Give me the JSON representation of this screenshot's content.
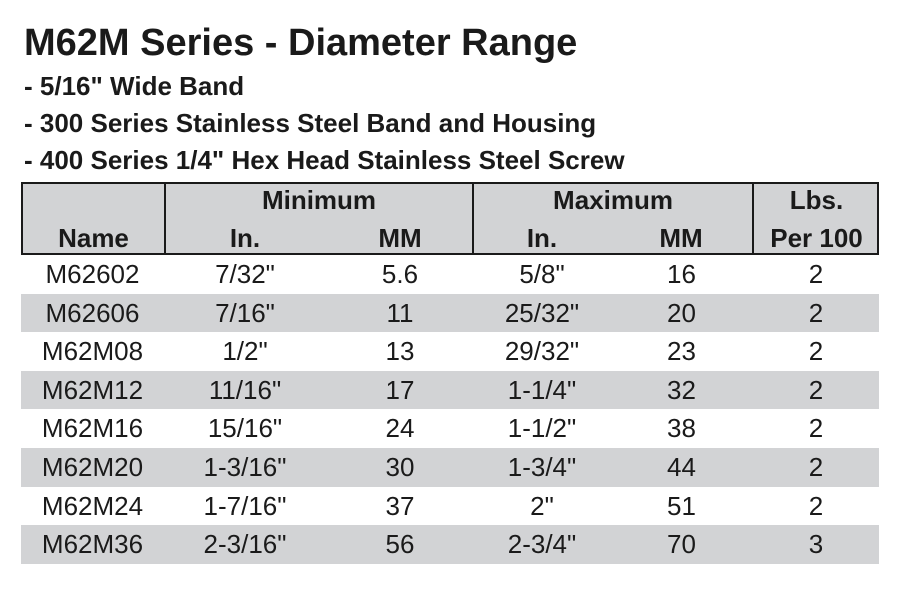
{
  "title": "M62M Series - Diameter Range",
  "bullets": [
    "- 5/16\" Wide Band",
    "- 300 Series Stainless Steel Band and Housing",
    "- 400 Series 1/4\" Hex Head Stainless Steel Screw"
  ],
  "table": {
    "headers": {
      "name": "Name",
      "minimum": "Minimum",
      "maximum": "Maximum",
      "in": "In.",
      "mm": "MM",
      "lbs_line1": "Lbs.",
      "lbs_line2": "Per 100"
    },
    "rows": [
      [
        "M62602",
        "7/32\"",
        "5.6",
        "5/8\"",
        "16",
        "2"
      ],
      [
        "M62606",
        "7/16\"",
        "11",
        "25/32\"",
        "20",
        "2"
      ],
      [
        "M62M08",
        "1/2\"",
        "13",
        "29/32\"",
        "23",
        "2"
      ],
      [
        "M62M12",
        "11/16\"",
        "17",
        "1-1/4\"",
        "32",
        "2"
      ],
      [
        "M62M16",
        "15/16\"",
        "24",
        "1-1/2\"",
        "38",
        "2"
      ],
      [
        "M62M20",
        "1-3/16\"",
        "30",
        "1-3/4\"",
        "44",
        "2"
      ],
      [
        "M62M24",
        "1-7/16\"",
        "37",
        "2\"",
        "51",
        "2"
      ],
      [
        "M62M36",
        "2-3/16\"",
        "56",
        "2-3/4\"",
        "70",
        "3"
      ]
    ]
  },
  "colors": {
    "row_shade": "#d2d3d5",
    "text": "#1a1a1a",
    "border": "#1a1a1a"
  }
}
